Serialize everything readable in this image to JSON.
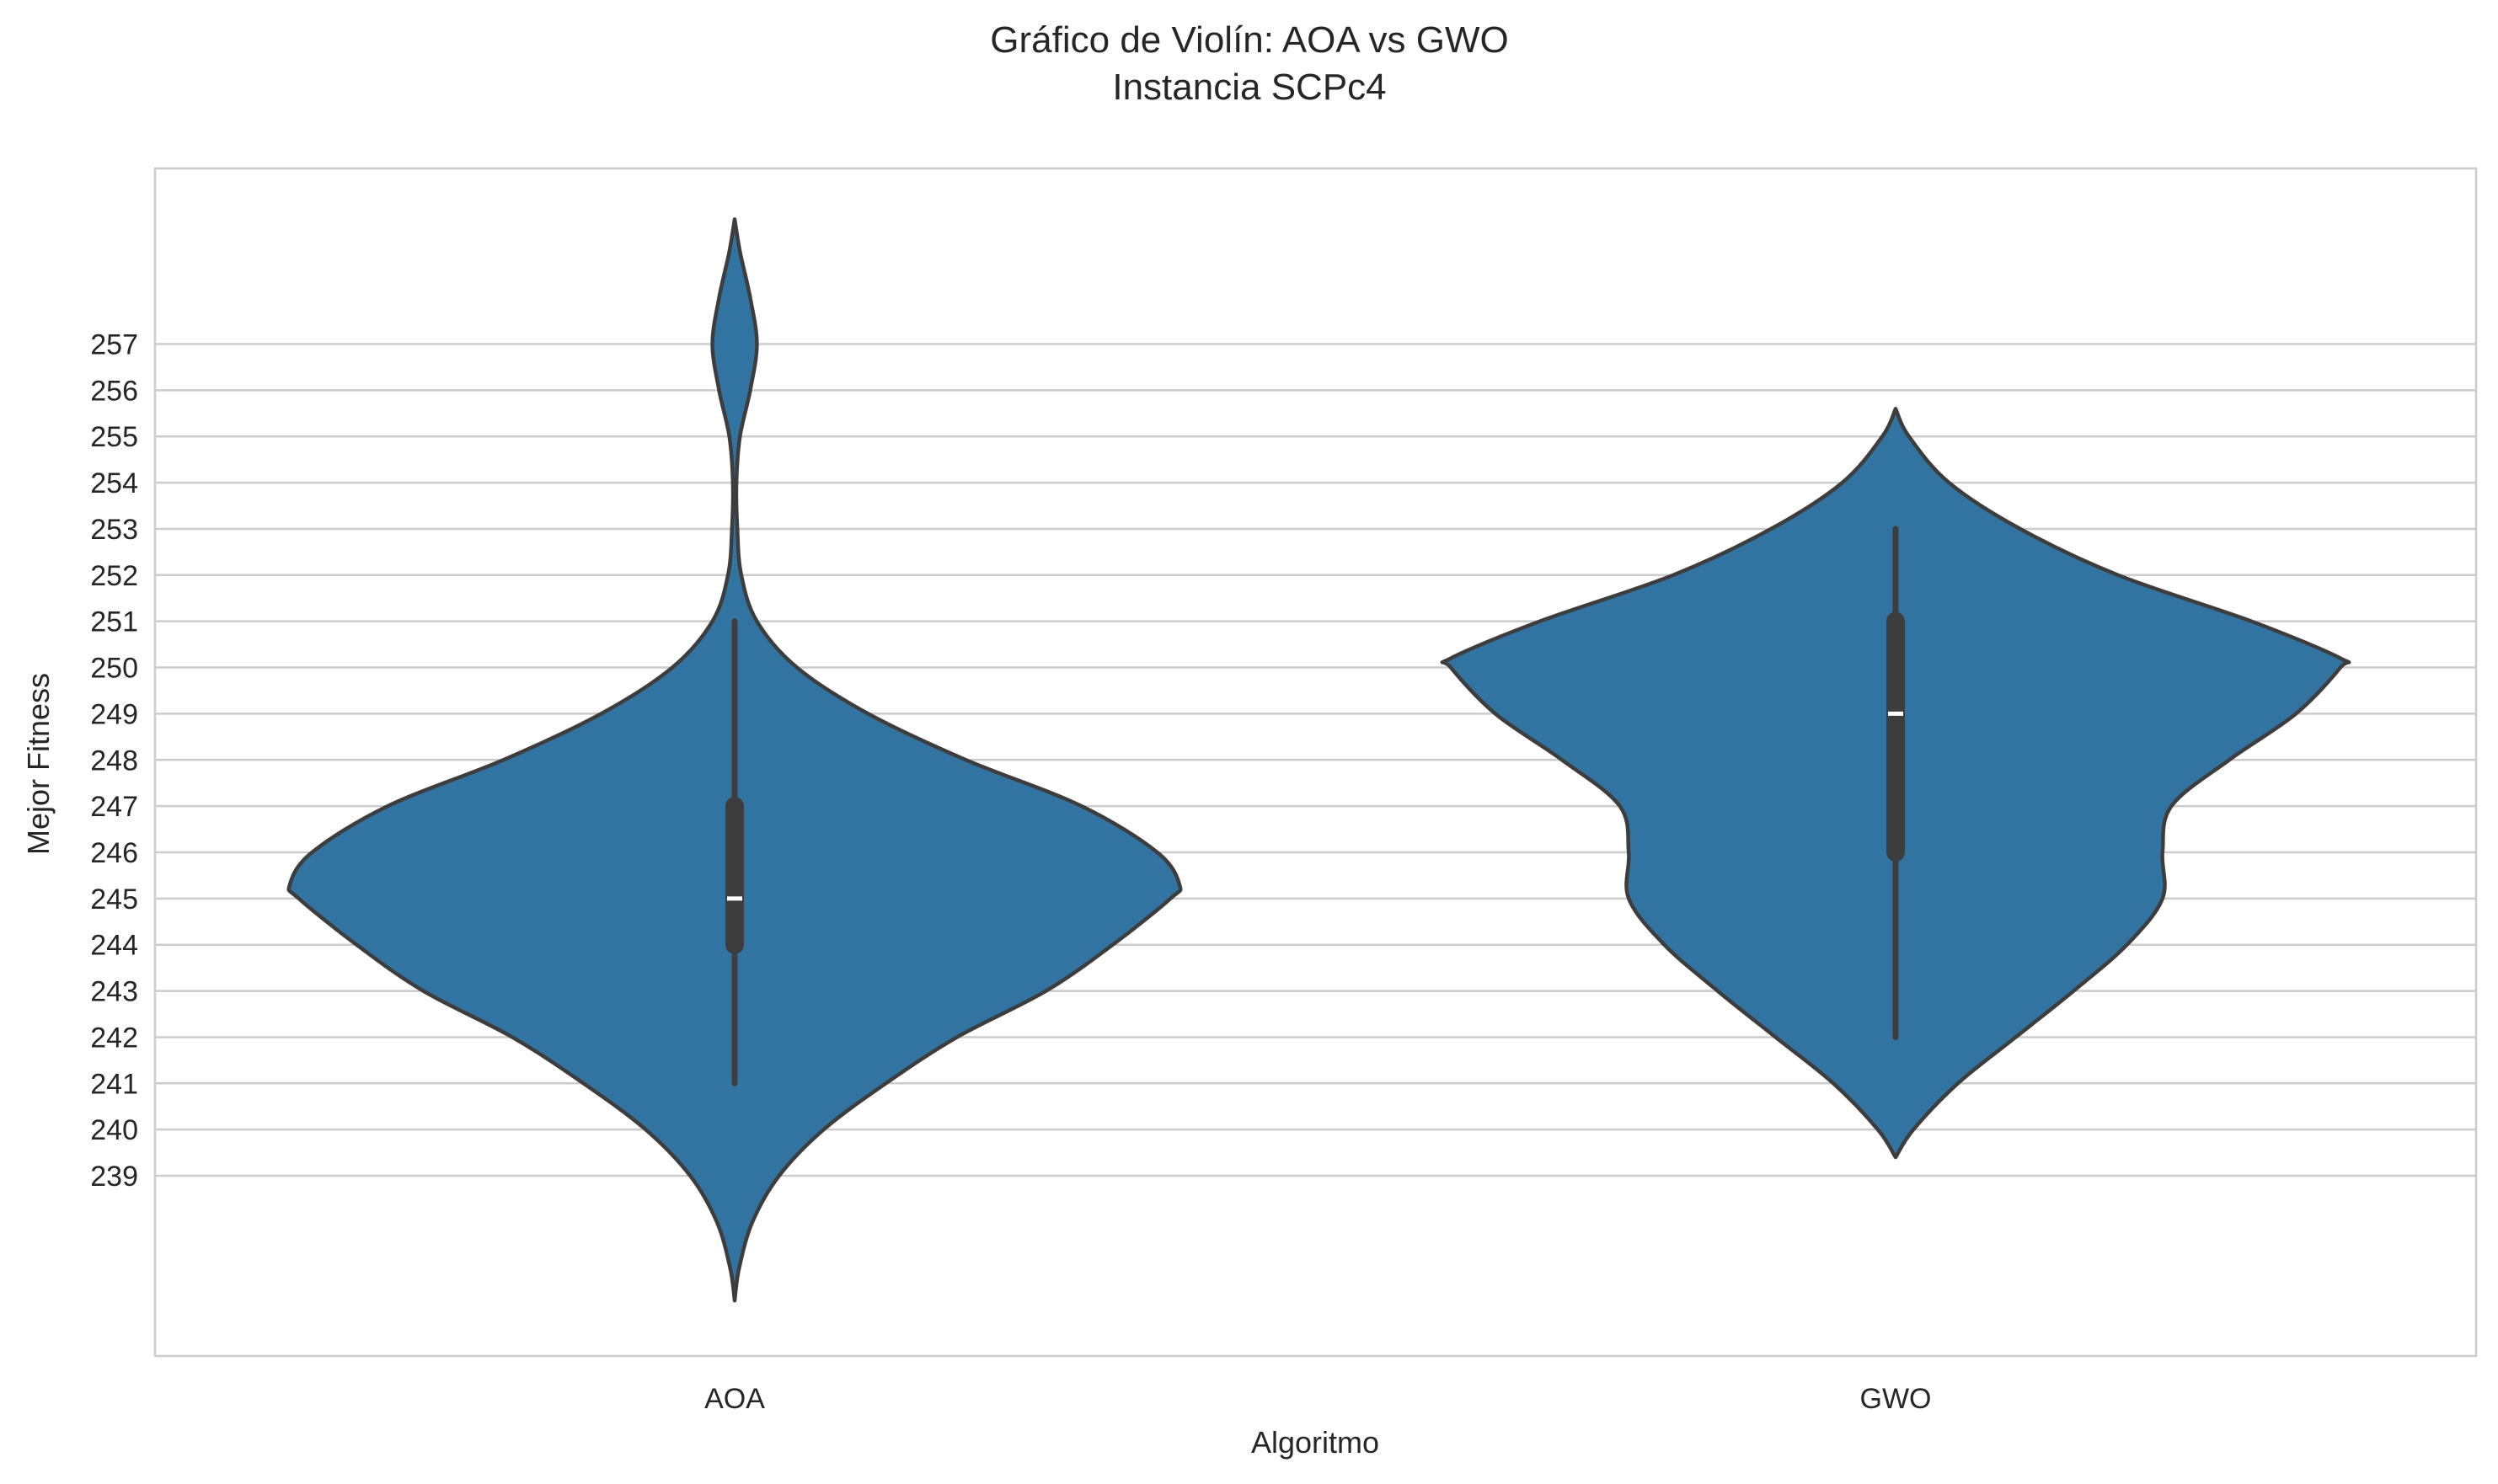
{
  "chart_data": {
    "type": "violin",
    "title": "Gráfico de Violín: AOA vs GWO",
    "subtitle": "Instancia SCPc4",
    "xlabel": "Algoritmo",
    "ylabel": "Mejor Fitness",
    "categories": [
      "AOA",
      "GWO"
    ],
    "yticks": [
      239,
      240,
      241,
      242,
      243,
      244,
      245,
      246,
      247,
      248,
      249,
      250,
      251,
      252,
      253,
      254,
      255,
      256,
      257
    ],
    "ylim": [
      235.1,
      260.8
    ],
    "grid": "horizontal",
    "colors": {
      "fill": "#3274a1",
      "edge": "#3d3d3d",
      "box": "#3d3d3d",
      "median": "#ffffff",
      "grid": "#cccccc",
      "spine": "#cccccc"
    },
    "violins": [
      {
        "category": "AOA",
        "min": 241,
        "q1": 244,
        "median": 245,
        "q3": 247,
        "max": 251,
        "density": [
          [
            236.3,
            0.0
          ],
          [
            237.0,
            0.01
          ],
          [
            238.0,
            0.04
          ],
          [
            239.0,
            0.1
          ],
          [
            240.0,
            0.2
          ],
          [
            241.0,
            0.34
          ],
          [
            242.0,
            0.5
          ],
          [
            243.0,
            0.7
          ],
          [
            244.0,
            0.85
          ],
          [
            245.0,
            0.98
          ],
          [
            245.3,
            1.0
          ],
          [
            246.0,
            0.95
          ],
          [
            247.0,
            0.78
          ],
          [
            248.0,
            0.52
          ],
          [
            249.0,
            0.3
          ],
          [
            250.0,
            0.14
          ],
          [
            251.0,
            0.05
          ],
          [
            252.0,
            0.015
          ],
          [
            253.0,
            0.006
          ],
          [
            254.0,
            0.004
          ],
          [
            255.0,
            0.012
          ],
          [
            256.0,
            0.035
          ],
          [
            257.0,
            0.05
          ],
          [
            258.0,
            0.035
          ],
          [
            259.0,
            0.012
          ],
          [
            259.7,
            0.0
          ]
        ]
      },
      {
        "category": "GWO",
        "min": 242,
        "q1": 246,
        "median": 249,
        "q3": 251,
        "max": 253,
        "density": [
          [
            239.4,
            0.0
          ],
          [
            240.0,
            0.04
          ],
          [
            241.0,
            0.14
          ],
          [
            242.0,
            0.27
          ],
          [
            243.0,
            0.4
          ],
          [
            244.0,
            0.52
          ],
          [
            245.0,
            0.6
          ],
          [
            246.0,
            0.6
          ],
          [
            247.0,
            0.62
          ],
          [
            248.0,
            0.75
          ],
          [
            249.0,
            0.9
          ],
          [
            250.0,
            1.0
          ],
          [
            250.2,
            1.0
          ],
          [
            251.0,
            0.8
          ],
          [
            252.0,
            0.5
          ],
          [
            253.0,
            0.28
          ],
          [
            254.0,
            0.12
          ],
          [
            255.0,
            0.03
          ],
          [
            255.6,
            0.0
          ]
        ]
      }
    ]
  }
}
